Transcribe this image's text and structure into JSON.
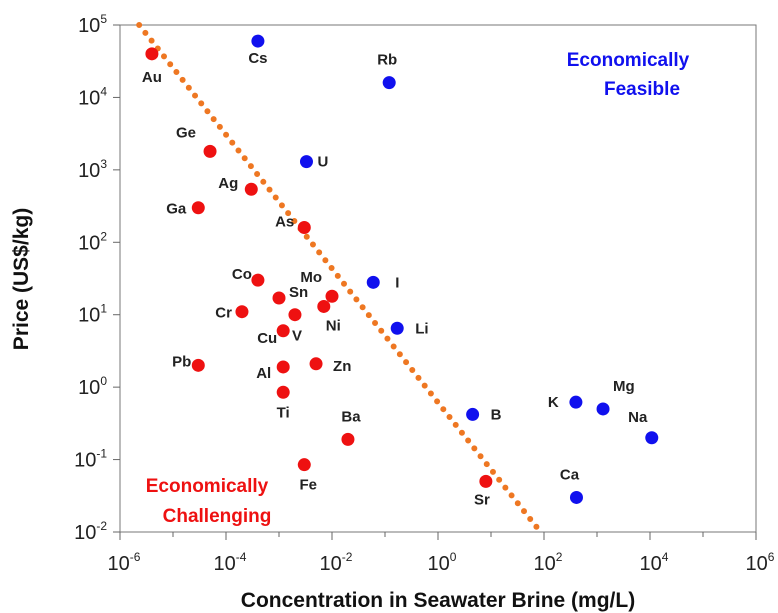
{
  "chart_data": {
    "type": "scatter",
    "xlabel": "Concentration in Seawater Brine (mg/L)",
    "ylabel": "Price (US$/kg)",
    "x_scale": "log",
    "y_scale": "log",
    "xlim": [
      1e-06,
      1000000.0
    ],
    "ylim": [
      0.01,
      100000
    ],
    "x_ticks": [
      {
        "base": "10",
        "exp": "-6",
        "value": 1e-06
      },
      {
        "base": "10",
        "exp": "-4",
        "value": 0.0001
      },
      {
        "base": "10",
        "exp": "-2",
        "value": 0.01
      },
      {
        "base": "10",
        "exp": "0",
        "value": 1
      },
      {
        "base": "10",
        "exp": "2",
        "value": 100
      },
      {
        "base": "10",
        "exp": "4",
        "value": 10000
      },
      {
        "base": "10",
        "exp": "6",
        "value": 1000000
      }
    ],
    "y_ticks": [
      {
        "base": "10",
        "exp": "-2",
        "value": 0.01
      },
      {
        "base": "10",
        "exp": "-1",
        "value": 0.1
      },
      {
        "base": "10",
        "exp": "0",
        "value": 1
      },
      {
        "base": "10",
        "exp": "1",
        "value": 10
      },
      {
        "base": "10",
        "exp": "2",
        "value": 100
      },
      {
        "base": "10",
        "exp": "3",
        "value": 1000
      },
      {
        "base": "10",
        "exp": "4",
        "value": 10000
      },
      {
        "base": "10",
        "exp": "5",
        "value": 100000
      }
    ],
    "colors": {
      "feasible": "#1010ee",
      "challenging": "#ee1111",
      "boundary": "#ee7722"
    },
    "annotations": {
      "feasible": [
        "Economically",
        "Feasible"
      ],
      "challenging": [
        "Economically",
        "Challenging"
      ]
    },
    "boundary_line": {
      "style": "dotted",
      "points": [
        [
          2.3e-06,
          100000
        ],
        [
          86,
          0.01
        ]
      ]
    },
    "series": [
      {
        "group": "feasible",
        "points": [
          {
            "label": "Cs",
            "x": 0.0004,
            "y": 60000
          },
          {
            "label": "Rb",
            "x": 0.12,
            "y": 16000
          },
          {
            "label": "U",
            "x": 0.0033,
            "y": 1300
          },
          {
            "label": "I",
            "x": 0.06,
            "y": 28
          },
          {
            "label": "Li",
            "x": 0.17,
            "y": 6.5
          },
          {
            "label": "B",
            "x": 4.5,
            "y": 0.42
          },
          {
            "label": "K",
            "x": 400,
            "y": 0.62
          },
          {
            "label": "Mg",
            "x": 1300,
            "y": 0.5
          },
          {
            "label": "Na",
            "x": 10800,
            "y": 0.2
          },
          {
            "label": "Ca",
            "x": 410,
            "y": 0.03
          }
        ]
      },
      {
        "group": "challenging",
        "points": [
          {
            "label": "Au",
            "x": 4e-06,
            "y": 40000
          },
          {
            "label": "Ge",
            "x": 5e-05,
            "y": 1800
          },
          {
            "label": "Ag",
            "x": 0.0003,
            "y": 540
          },
          {
            "label": "Ga",
            "x": 3e-05,
            "y": 300
          },
          {
            "label": "As",
            "x": 0.003,
            "y": 160
          },
          {
            "label": "Co",
            "x": 0.0004,
            "y": 30
          },
          {
            "label": "Sn",
            "x": 0.001,
            "y": 17
          },
          {
            "label": "Mo",
            "x": 0.01,
            "y": 18
          },
          {
            "label": "Cr",
            "x": 0.0002,
            "y": 11
          },
          {
            "label": "V",
            "x": 0.002,
            "y": 10
          },
          {
            "label": "Ni",
            "x": 0.007,
            "y": 13
          },
          {
            "label": "Cu",
            "x": 0.0012,
            "y": 6
          },
          {
            "label": "Pb",
            "x": 3e-05,
            "y": 2
          },
          {
            "label": "Al",
            "x": 0.0012,
            "y": 1.9
          },
          {
            "label": "Zn",
            "x": 0.005,
            "y": 2.1
          },
          {
            "label": "Ti",
            "x": 0.0012,
            "y": 0.85
          },
          {
            "label": "Ba",
            "x": 0.02,
            "y": 0.19
          },
          {
            "label": "Fe",
            "x": 0.003,
            "y": 0.085
          },
          {
            "label": "Sr",
            "x": 8,
            "y": 0.05
          }
        ]
      }
    ]
  }
}
